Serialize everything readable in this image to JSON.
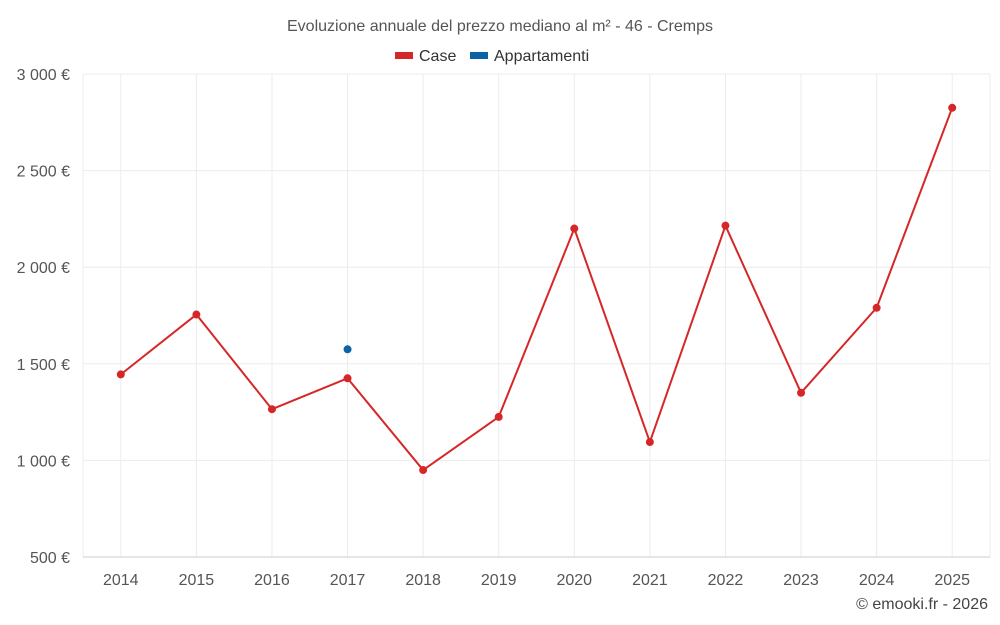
{
  "chart_data": {
    "type": "line",
    "title": "Evoluzione annuale del prezzo mediano al m² - 46 - Cremps",
    "categories": [
      "2014",
      "2015",
      "2016",
      "2017",
      "2018",
      "2019",
      "2020",
      "2021",
      "2022",
      "2023",
      "2024",
      "2025"
    ],
    "y_ticks": [
      {
        "value": 500,
        "label": "500 €"
      },
      {
        "value": 1000,
        "label": "1 000 €"
      },
      {
        "value": 1500,
        "label": "1 500 €"
      },
      {
        "value": 2000,
        "label": "2 000 €"
      },
      {
        "value": 2500,
        "label": "2 500 €"
      },
      {
        "value": 3000,
        "label": "3 000 €"
      }
    ],
    "ylim": [
      500,
      3000
    ],
    "xlabel": "",
    "ylabel": "",
    "grid": true,
    "legend_position": "top-center",
    "series": [
      {
        "name": "Case",
        "color": "#d62728",
        "values": [
          1445,
          1755,
          1265,
          1425,
          950,
          1225,
          2200,
          1095,
          2215,
          1350,
          1790,
          2825
        ]
      },
      {
        "name": "Appartamenti",
        "color": "#0b62a4",
        "values": [
          null,
          null,
          null,
          1575,
          null,
          null,
          null,
          null,
          null,
          null,
          null,
          null
        ]
      }
    ]
  },
  "credit": "© emooki.fr - 2026"
}
